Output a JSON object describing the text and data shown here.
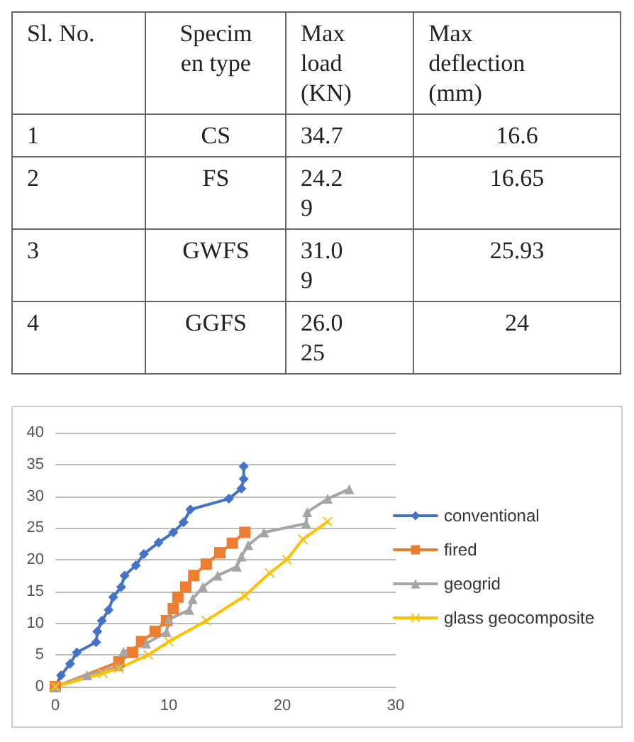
{
  "chart_data": [
    {
      "type": "other",
      "annotations": [
        "Sl. No.",
        "Specim\nen type",
        "Max\nload\n(KN)",
        "Max\ndeflection\n(mm)",
        "1",
        "CS",
        "34.7",
        "16.6",
        "2",
        "FS",
        "24.2\n9",
        "16.65",
        "3",
        "GWFS",
        "31.0\n9",
        "25.93",
        "4",
        "GGFS",
        "26.0\n25",
        "24"
      ]
    },
    {
      "type": "line",
      "xlim": [
        0,
        30
      ],
      "xticks": [
        0,
        10,
        20,
        30
      ],
      "ylim": [
        0,
        40
      ],
      "yticks": [
        0,
        5,
        10,
        15,
        20,
        25,
        30,
        35,
        40
      ],
      "grid": "y",
      "legend": "right",
      "series": [
        {
          "name": "conventional",
          "color": "#4472c4",
          "marker": "diamond",
          "x": [
            0,
            0.5,
            1.3,
            1.9,
            3.6,
            3.7,
            4.1,
            4.7,
            5.1,
            5.8,
            6.1,
            7.1,
            7.8,
            9.1,
            10.4,
            11.3,
            11.9,
            15.3,
            16.4,
            16.6,
            16.6
          ],
          "values": [
            0,
            1.8,
            3.6,
            5.4,
            7,
            8.7,
            10.4,
            12.1,
            14.1,
            15.7,
            17.5,
            19.1,
            20.9,
            22.7,
            24.3,
            25.9,
            27.9,
            29.6,
            31.2,
            32.7,
            34.7
          ]
        },
        {
          "name": "fired",
          "color": "#ed7d31",
          "marker": "square",
          "x": [
            0,
            5.6,
            6.8,
            7.6,
            8.8,
            9.8,
            10.4,
            10.8,
            11.5,
            12.2,
            13.3,
            14.5,
            15.6,
            16.7
          ],
          "values": [
            0,
            3.9,
            5.4,
            7.1,
            8.7,
            10.4,
            12.3,
            14.1,
            15.7,
            17.5,
            19.3,
            21.1,
            22.6,
            24.3
          ]
        },
        {
          "name": "geogrid",
          "color": "#a5a5a5",
          "marker": "triangle",
          "x": [
            0,
            2.8,
            5.6,
            6,
            8,
            9.8,
            10,
            11.8,
            12.1,
            13,
            14.3,
            16,
            16.4,
            17,
            18.4,
            22.1,
            22.2,
            24,
            25.9
          ],
          "values": [
            0,
            1.8,
            3.2,
            5.5,
            6.8,
            8.6,
            10.6,
            12.1,
            13.8,
            15.7,
            17.5,
            18.9,
            20.5,
            22.3,
            24.3,
            25.7,
            27.5,
            29.6,
            31.1
          ]
        },
        {
          "name": "glass geocomposite",
          "color": "#ffc000",
          "marker": "cross",
          "x": [
            0,
            4.2,
            5.6,
            8.2,
            10,
            13.3,
            16.7,
            18.9,
            20.4,
            21.8,
            24
          ],
          "values": [
            0,
            2.1,
            2.9,
            5,
            7.1,
            10.4,
            14.3,
            17.9,
            20,
            23.2,
            26
          ]
        }
      ]
    }
  ]
}
